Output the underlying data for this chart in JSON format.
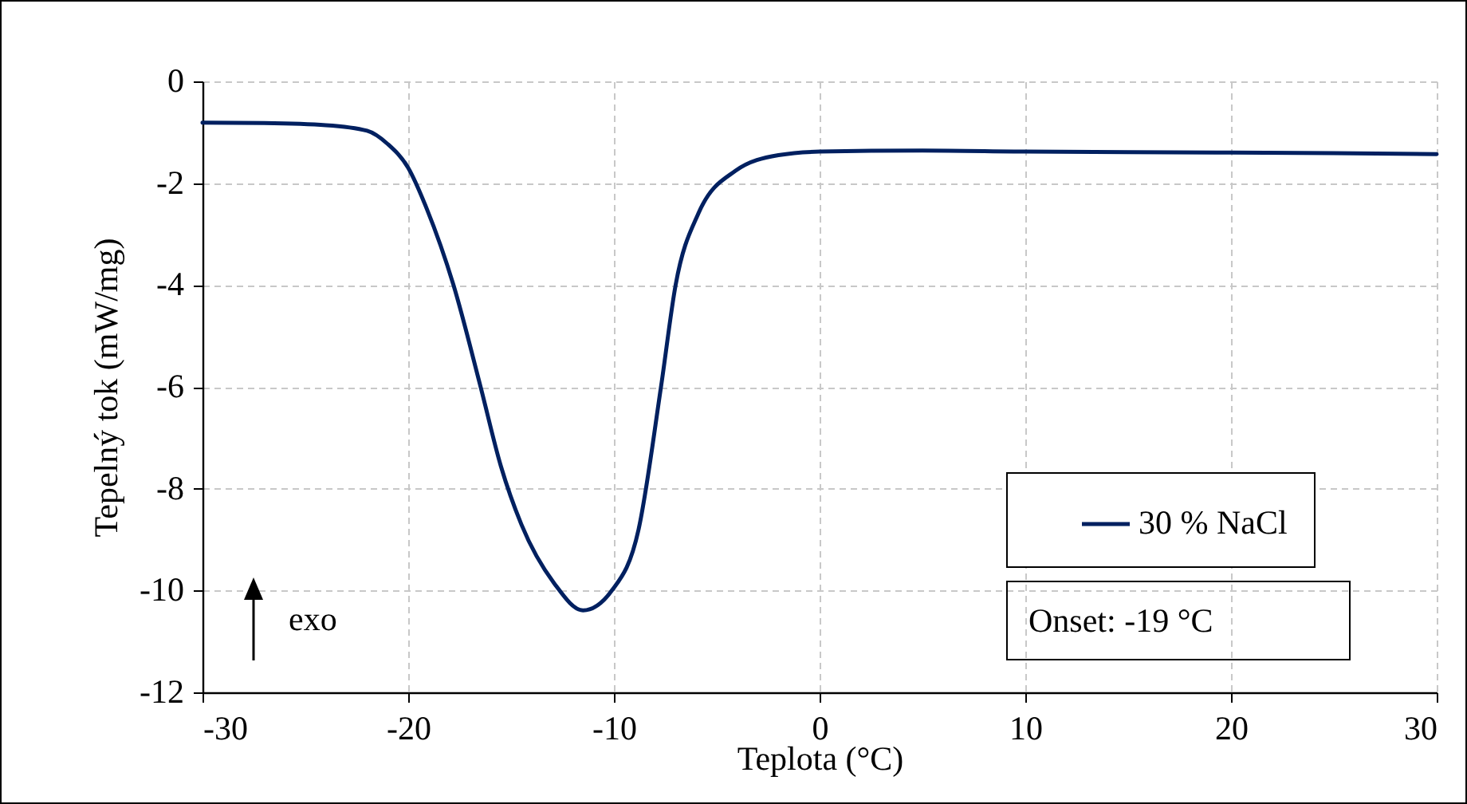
{
  "chart_data": {
    "type": "line",
    "xlabel": "Teplota (°C)",
    "ylabel": "Tepelný tok (mW/mg)",
    "x": [
      -30,
      -27,
      -24,
      -22,
      -21,
      -20,
      -19.1,
      -17.8,
      -16.5,
      -15.5,
      -14.5,
      -12.9,
      -11.5,
      -10.1,
      -8.8,
      -7.7,
      -7.0,
      -5.9,
      -4.1,
      -2,
      0,
      5,
      10,
      15,
      20,
      25,
      30
    ],
    "series": [
      {
        "name": "30 % NaCl",
        "color": "#002060",
        "values": [
          -0.81,
          -0.82,
          -0.86,
          -0.97,
          -1.23,
          -1.7,
          -2.5,
          -4.0,
          -5.97,
          -7.55,
          -8.7,
          -9.86,
          -10.39,
          -10.0,
          -8.8,
          -5.97,
          -4.0,
          -2.6,
          -1.76,
          -1.45,
          -1.38,
          -1.36,
          -1.38,
          -1.39,
          -1.4,
          -1.41,
          -1.43
        ]
      }
    ],
    "xlim": [
      -30,
      30
    ],
    "xticks": [
      -30,
      -20,
      -10,
      0,
      10,
      20,
      30
    ],
    "ylim": [
      -12,
      0
    ],
    "yticks": [
      -12,
      -10,
      -8,
      -6,
      -4,
      -2,
      0
    ],
    "grid": true,
    "legend": "bottom right",
    "annotations": [
      "exo",
      "Onset: -19 °C"
    ]
  }
}
